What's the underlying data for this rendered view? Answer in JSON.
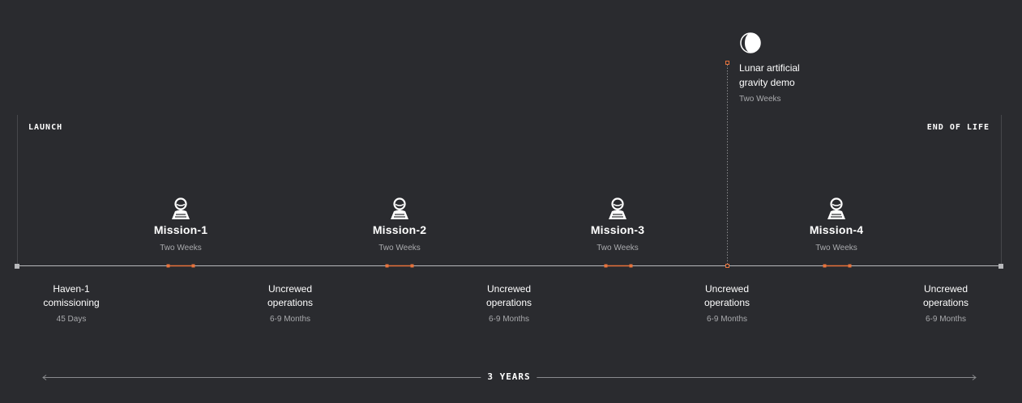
{
  "edges": {
    "launch": "LAUNCH",
    "end_of_life": "END OF LIFE"
  },
  "missions": [
    {
      "title": "Mission-1",
      "duration": "Two Weeks"
    },
    {
      "title": "Mission-2",
      "duration": "Two Weeks"
    },
    {
      "title": "Mission-3",
      "duration": "Two Weeks"
    },
    {
      "title": "Mission-4",
      "duration": "Two Weeks"
    }
  ],
  "phases": [
    {
      "title_line1": "Haven-1",
      "title_line2": "comissioning",
      "duration": "45 Days"
    },
    {
      "title_line1": "Uncrewed",
      "title_line2": "operations",
      "duration": "6-9 Months"
    },
    {
      "title_line1": "Uncrewed",
      "title_line2": "operations",
      "duration": "6-9 Months"
    },
    {
      "title_line1": "Uncrewed",
      "title_line2": "operations",
      "duration": "6-9 Months"
    },
    {
      "title_line1": "Uncrewed",
      "title_line2": "operations",
      "duration": "6-9 Months"
    }
  ],
  "demo": {
    "title_line1": "Lunar artificial",
    "title_line2": "gravity demo",
    "duration": "Two Weeks",
    "icon": "moon-icon"
  },
  "total_span": "3 YEARS",
  "colors": {
    "background": "#2a2b2f",
    "accent": "#e8733c",
    "line": "#9c9da0",
    "muted_text": "#a9aaad"
  },
  "icons": {
    "mission": "astronaut-icon"
  }
}
